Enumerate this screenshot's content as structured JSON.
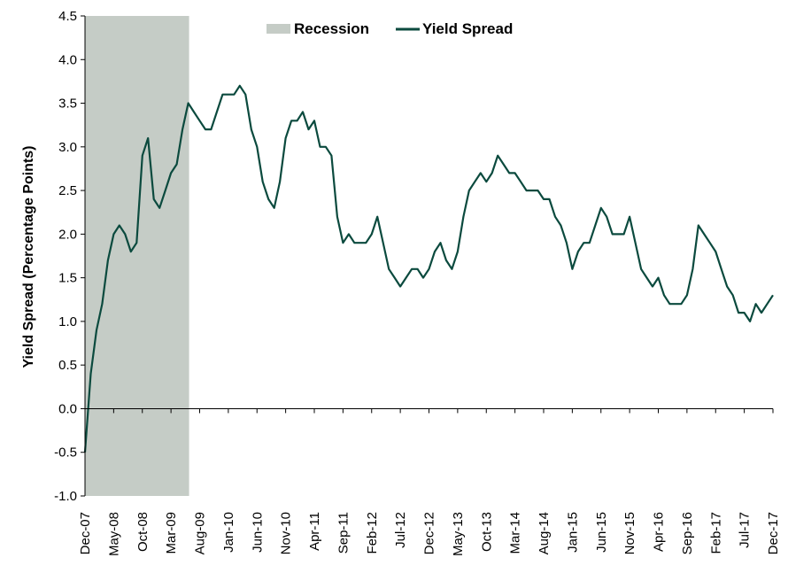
{
  "chart_data": {
    "type": "line",
    "title": "",
    "xlabel": "",
    "ylabel": "Yield Spread (Percentage Points)",
    "ylim": [
      -1.0,
      4.5
    ],
    "y_ticks": [
      "-1.0",
      "-0.5",
      "0.0",
      "0.5",
      "1.0",
      "1.5",
      "2.0",
      "2.5",
      "3.0",
      "3.5",
      "4.0",
      "4.5"
    ],
    "x_ticks": [
      "Dec-07",
      "May-08",
      "Oct-08",
      "Mar-09",
      "Aug-09",
      "Jan-10",
      "Jun-10",
      "Nov-10",
      "Apr-11",
      "Sep-11",
      "Feb-12",
      "Jul-12",
      "Dec-12",
      "May-13",
      "Oct-13",
      "Mar-14",
      "Aug-14",
      "Jan-15",
      "Jun-15",
      "Nov-15",
      "Apr-16",
      "Sep-16",
      "Feb-17",
      "Jul-17",
      "Dec-17"
    ],
    "legend_position": "top-center",
    "grid": false,
    "colors": {
      "line": "#0b4a3e",
      "recession": "#c5ccc6"
    },
    "recession_shading": {
      "start": "Dec-07",
      "end": "Jun-09"
    },
    "legend": [
      "Recession",
      "Yield Spread"
    ],
    "series": [
      {
        "name": "Yield Spread",
        "x": [
          "2007-12",
          "2008-01",
          "2008-02",
          "2008-03",
          "2008-04",
          "2008-05",
          "2008-06",
          "2008-07",
          "2008-08",
          "2008-09",
          "2008-10",
          "2008-11",
          "2008-12",
          "2009-01",
          "2009-02",
          "2009-03",
          "2009-04",
          "2009-05",
          "2009-06",
          "2009-07",
          "2009-08",
          "2009-09",
          "2009-10",
          "2009-11",
          "2009-12",
          "2010-01",
          "2010-02",
          "2010-03",
          "2010-04",
          "2010-05",
          "2010-06",
          "2010-07",
          "2010-08",
          "2010-09",
          "2010-10",
          "2010-11",
          "2010-12",
          "2011-01",
          "2011-02",
          "2011-03",
          "2011-04",
          "2011-05",
          "2011-06",
          "2011-07",
          "2011-08",
          "2011-09",
          "2011-10",
          "2011-11",
          "2011-12",
          "2012-01",
          "2012-02",
          "2012-03",
          "2012-04",
          "2012-05",
          "2012-06",
          "2012-07",
          "2012-08",
          "2012-09",
          "2012-10",
          "2012-11",
          "2012-12",
          "2013-01",
          "2013-02",
          "2013-03",
          "2013-04",
          "2013-05",
          "2013-06",
          "2013-07",
          "2013-08",
          "2013-09",
          "2013-10",
          "2013-11",
          "2013-12",
          "2014-01",
          "2014-02",
          "2014-03",
          "2014-04",
          "2014-05",
          "2014-06",
          "2014-07",
          "2014-08",
          "2014-09",
          "2014-10",
          "2014-11",
          "2014-12",
          "2015-01",
          "2015-02",
          "2015-03",
          "2015-04",
          "2015-05",
          "2015-06",
          "2015-07",
          "2015-08",
          "2015-09",
          "2015-10",
          "2015-11",
          "2015-12",
          "2016-01",
          "2016-02",
          "2016-03",
          "2016-04",
          "2016-05",
          "2016-06",
          "2016-07",
          "2016-08",
          "2016-09",
          "2016-10",
          "2016-11",
          "2016-12",
          "2017-01",
          "2017-02",
          "2017-03",
          "2017-04",
          "2017-05",
          "2017-06",
          "2017-07",
          "2017-08",
          "2017-09",
          "2017-10",
          "2017-11",
          "2017-12"
        ],
        "values": [
          -0.5,
          0.4,
          0.9,
          1.2,
          1.7,
          2.0,
          2.1,
          2.0,
          1.8,
          1.9,
          2.9,
          3.1,
          2.4,
          2.3,
          2.5,
          2.7,
          2.8,
          3.2,
          3.5,
          3.4,
          3.3,
          3.2,
          3.2,
          3.4,
          3.6,
          3.6,
          3.6,
          3.7,
          3.6,
          3.2,
          3.0,
          2.6,
          2.4,
          2.3,
          2.6,
          3.1,
          3.3,
          3.3,
          3.4,
          3.2,
          3.3,
          3.0,
          3.0,
          2.9,
          2.2,
          1.9,
          2.0,
          1.9,
          1.9,
          1.9,
          2.0,
          2.2,
          1.9,
          1.6,
          1.5,
          1.4,
          1.5,
          1.6,
          1.6,
          1.5,
          1.6,
          1.8,
          1.9,
          1.7,
          1.6,
          1.8,
          2.2,
          2.5,
          2.6,
          2.7,
          2.6,
          2.7,
          2.9,
          2.8,
          2.7,
          2.7,
          2.6,
          2.5,
          2.5,
          2.5,
          2.4,
          2.4,
          2.2,
          2.1,
          1.9,
          1.6,
          1.8,
          1.9,
          1.9,
          2.1,
          2.3,
          2.2,
          2.0,
          2.0,
          2.0,
          2.2,
          1.9,
          1.6,
          1.5,
          1.4,
          1.5,
          1.3,
          1.2,
          1.2,
          1.2,
          1.3,
          1.6,
          2.1,
          2.0,
          1.9,
          1.8,
          1.6,
          1.4,
          1.3,
          1.1,
          1.1,
          1.0,
          1.2,
          1.1,
          1.2,
          1.3
        ]
      }
    ]
  }
}
